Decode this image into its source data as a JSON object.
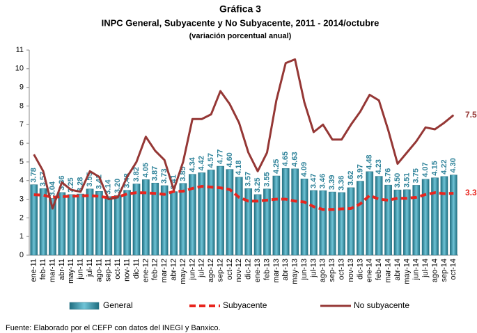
{
  "chart_data": {
    "type": "bar",
    "title": "Gráfica 3",
    "subtitle": "INPC General, Subyacente y No Subyacente, 2011 - 2014/octubre",
    "note": "(variación porcentual anual)",
    "source": "Fuente: Elaborado por el CEFP con datos del INEGI y Banxico.",
    "categories": [
      "ene-11",
      "feb-11",
      "mar-11",
      "abr-11",
      "may-11",
      "jun-11",
      "jul-11",
      "ago-11",
      "sep-11",
      "oct-11",
      "nov-11",
      "dic-11",
      "ene-12",
      "feb-12",
      "mar-12",
      "abr-12",
      "may-12",
      "jun-12",
      "jul-12",
      "ago-12",
      "sep-12",
      "oct-12",
      "nov-12",
      "dic-12",
      "ene-13",
      "feb-13",
      "mar-13",
      "abr-13",
      "may-13",
      "jun-13",
      "jul-13",
      "ago-13",
      "sep-13",
      "oct-13",
      "nov-13",
      "dic-13",
      "ene-14",
      "feb-14",
      "mar-14",
      "abr-14",
      "may-14",
      "jun-14",
      "jul-14",
      "ago-14",
      "sep-14",
      "oct-14"
    ],
    "series": [
      {
        "name": "General",
        "type": "bar",
        "color": "#31849b",
        "values": [
          3.78,
          3.57,
          3.04,
          3.36,
          3.25,
          3.28,
          3.55,
          3.42,
          3.14,
          3.2,
          3.48,
          3.82,
          4.05,
          3.87,
          3.73,
          3.41,
          3.85,
          4.34,
          4.42,
          4.57,
          4.77,
          4.6,
          4.18,
          3.57,
          3.25,
          3.55,
          4.25,
          4.65,
          4.63,
          4.09,
          3.47,
          3.46,
          3.39,
          3.36,
          3.62,
          3.97,
          4.48,
          4.23,
          3.76,
          3.5,
          3.51,
          3.75,
          4.07,
          4.15,
          4.22,
          4.3
        ],
        "value_labels": [
          "3.78",
          "3.57",
          "3.04",
          "3.36",
          "3.25",
          "3.28",
          "3.55",
          "3.42",
          "3.14",
          "3.20",
          "3.48",
          "3.82",
          "4.05",
          "3.87",
          "3.73",
          "3.41",
          "3.85",
          "4.34",
          "4.42",
          "4.57",
          "4.77",
          "4.60",
          "4.18",
          "3.57",
          "3.25",
          "3.55",
          "4.25",
          "4.65",
          "4.63",
          "4.09",
          "3.47",
          "3.46",
          "3.39",
          "3.36",
          "3.62",
          "3.97",
          "4.48",
          "4.23",
          "3.76",
          "3.50",
          "3.51",
          "3.75",
          "4.07",
          "4.15",
          "4.22",
          "4.30"
        ]
      },
      {
        "name": "Subyacente",
        "type": "line",
        "dash": true,
        "color": "#e8251e",
        "values": [
          3.24,
          3.22,
          3.1,
          3.14,
          3.16,
          3.18,
          3.19,
          3.16,
          3.07,
          3.12,
          3.28,
          3.35,
          3.34,
          3.31,
          3.26,
          3.42,
          3.43,
          3.58,
          3.69,
          3.65,
          3.61,
          3.52,
          3.1,
          2.9,
          2.9,
          2.95,
          3.0,
          3.0,
          2.9,
          2.85,
          2.6,
          2.45,
          2.45,
          2.48,
          2.5,
          2.75,
          3.2,
          3.0,
          2.95,
          3.05,
          3.05,
          3.1,
          3.25,
          3.35,
          3.3,
          3.32
        ]
      },
      {
        "name": "No subyacente",
        "type": "line",
        "dash": false,
        "color": "#953735",
        "values": [
          5.4,
          4.5,
          2.5,
          3.9,
          3.5,
          3.4,
          4.5,
          4.2,
          3.0,
          3.1,
          4.2,
          5.0,
          6.35,
          5.6,
          5.1,
          3.5,
          5.0,
          7.3,
          7.3,
          7.55,
          8.8,
          8.1,
          7.1,
          5.5,
          4.5,
          5.5,
          8.3,
          10.3,
          10.5,
          8.2,
          6.6,
          7.0,
          6.2,
          6.2,
          7.0,
          7.7,
          8.6,
          8.3,
          6.7,
          4.9,
          5.5,
          6.1,
          6.85,
          6.75,
          7.1,
          7.51
        ]
      }
    ],
    "ylim": [
      0,
      11
    ],
    "yticks": [
      0,
      1,
      2,
      3,
      4,
      5,
      6,
      7,
      8,
      9,
      10,
      11
    ],
    "grid": false
  }
}
